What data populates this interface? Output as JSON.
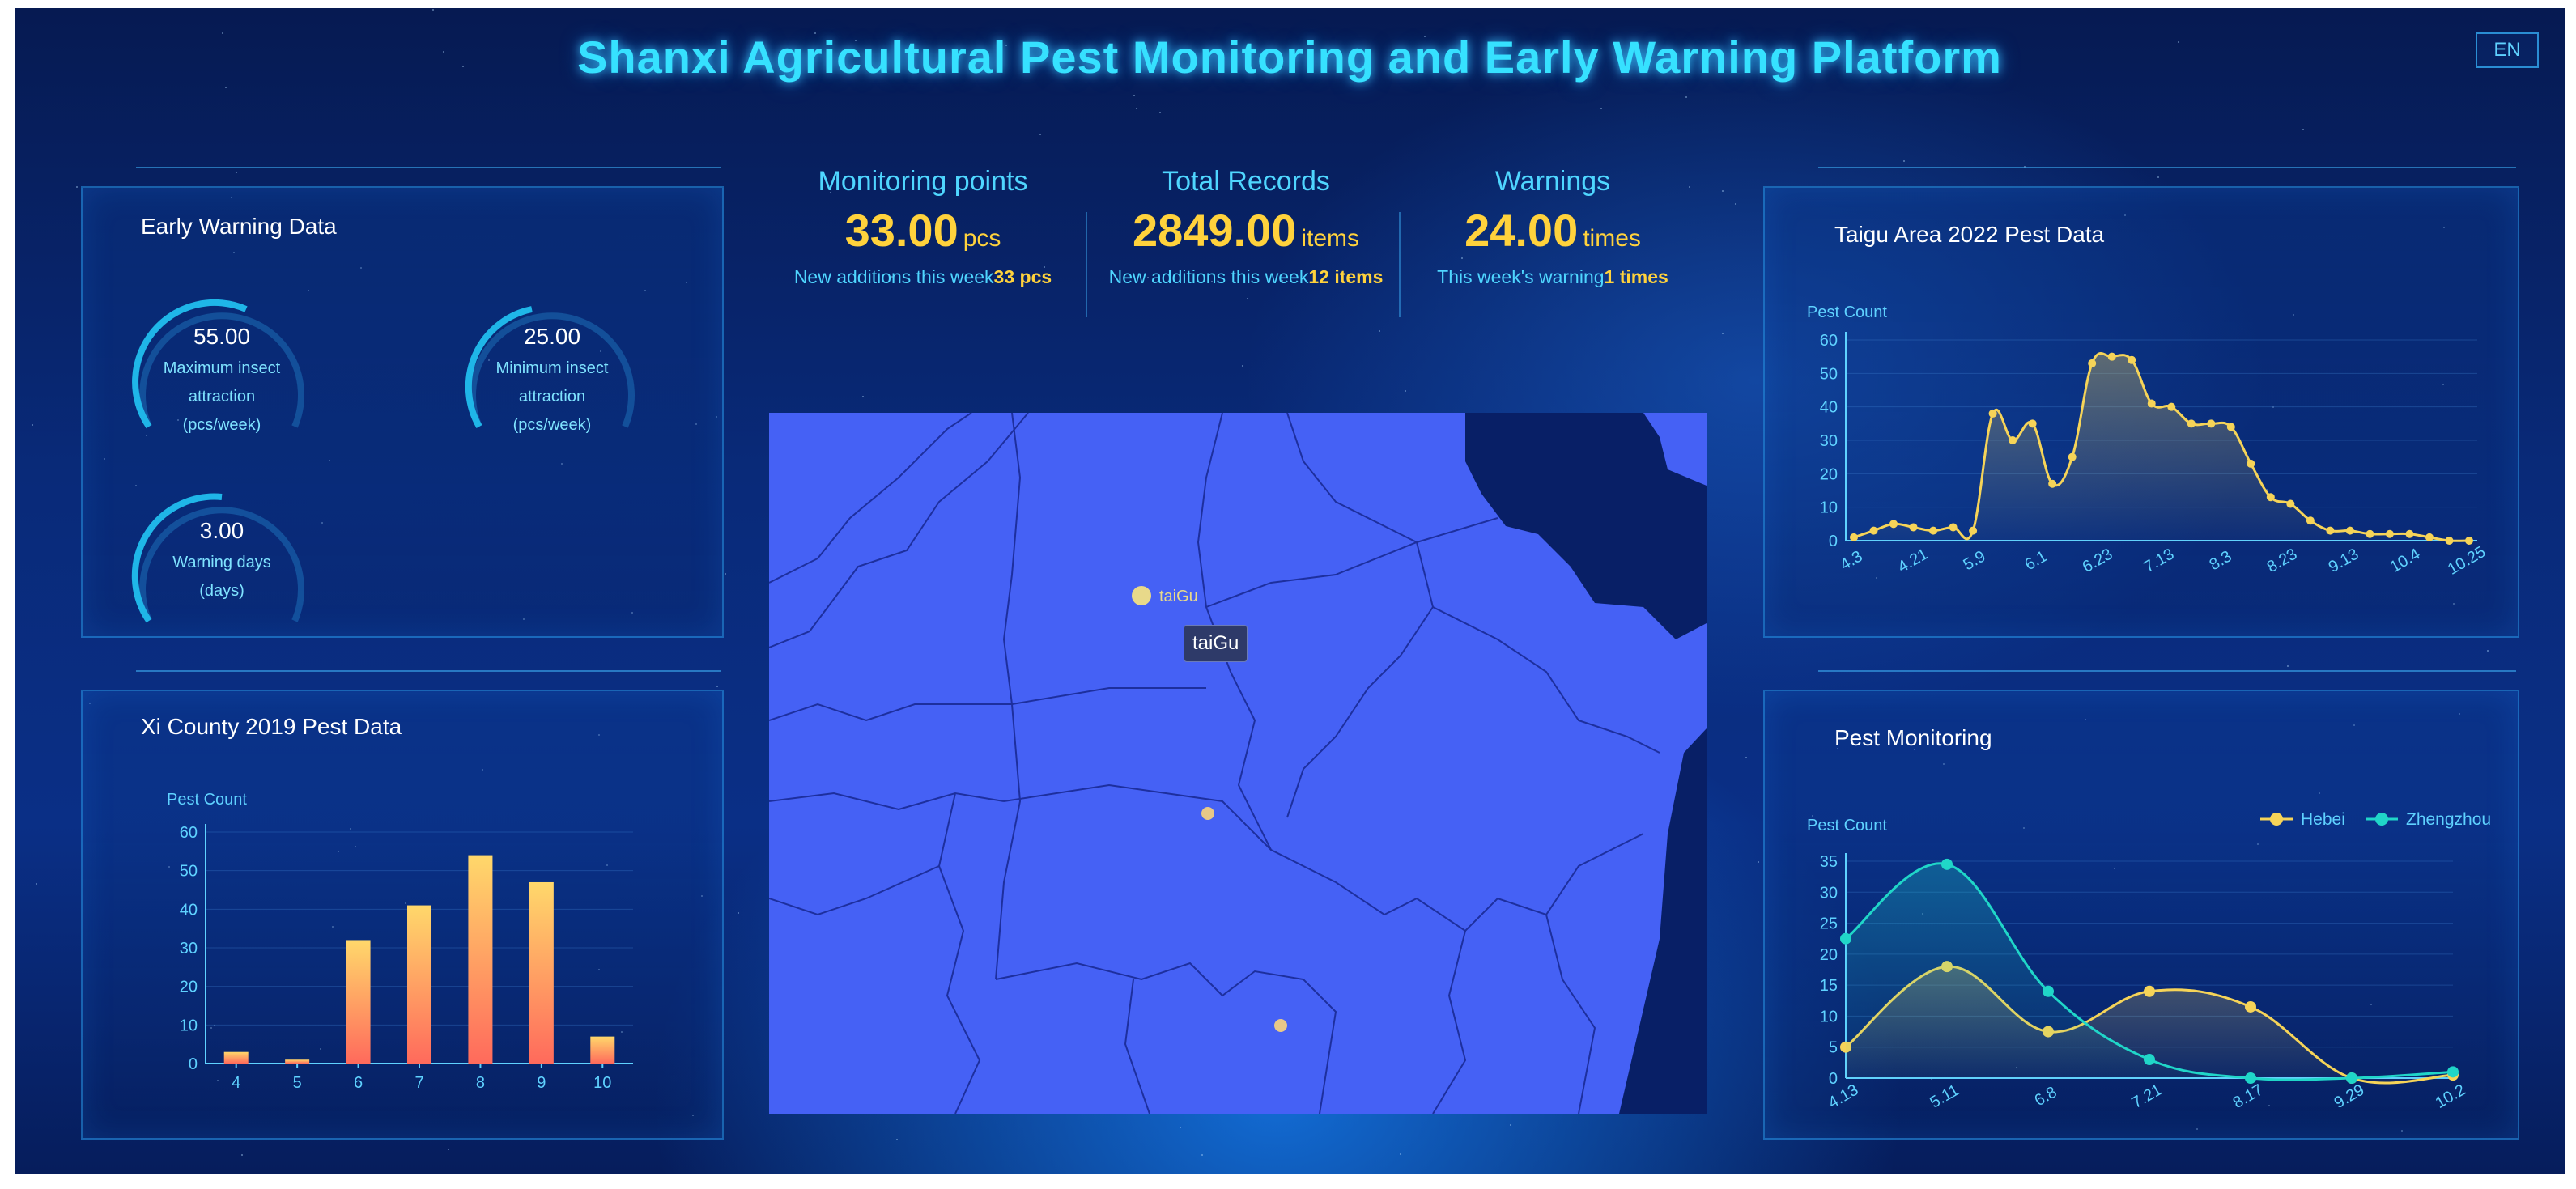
{
  "header": {
    "title": "Shanxi Agricultural Pest Monitoring and Early Warning Platform",
    "lang_button": "EN"
  },
  "early_warning": {
    "title": "Early Warning Data",
    "gauges": [
      {
        "value": "55.00",
        "label_lines": [
          "Maximum insect",
          "attraction",
          "(pcs/week)"
        ]
      },
      {
        "value": "25.00",
        "label_lines": [
          "Minimum insect",
          "attraction",
          "(pcs/week)"
        ]
      },
      {
        "value": "3.00",
        "label_lines": [
          "Warning days",
          "(days)"
        ]
      }
    ]
  },
  "stats": [
    {
      "heading": "Monitoring points",
      "value": "33.00",
      "unit": "pcs",
      "sub_text": "New additions this week",
      "sub_value": "33",
      "sub_unit": "pcs"
    },
    {
      "heading": "Total Records",
      "value": "2849.00",
      "unit": "items",
      "sub_text": "New additions this week",
      "sub_value": "12",
      "sub_unit": "items"
    },
    {
      "heading": "Warnings",
      "value": "24.00",
      "unit": "times",
      "sub_text": "This week's warning",
      "sub_value": "1",
      "sub_unit": "times"
    }
  ],
  "map": {
    "marker_label": "taiGu",
    "tooltip": "taiGu",
    "colors": {
      "land": "#4561f5",
      "sea": "#081f66",
      "marker": "#e8d98a",
      "border": "#1d2f9e"
    }
  },
  "taigu_panel": {
    "title": "Taigu Area 2022 Pest Data"
  },
  "xi_panel": {
    "title": "Xi County 2019 Pest Data"
  },
  "pest_panel": {
    "title": "Pest Monitoring"
  },
  "chart_data": [
    {
      "id": "xi_county",
      "type": "bar",
      "ylabel": "Pest Count",
      "categories": [
        "4",
        "5",
        "6",
        "7",
        "8",
        "9",
        "10"
      ],
      "values": [
        3,
        1,
        32,
        41,
        54,
        47,
        7
      ],
      "ylim": [
        0,
        60
      ],
      "yticks": [
        0,
        10,
        20,
        30,
        40,
        50,
        60
      ],
      "colors": {
        "bar_top": "#ffd86b",
        "bar_bottom": "#ff6a5c",
        "axis": "#5fd2ff"
      }
    },
    {
      "id": "taigu",
      "type": "line",
      "ylabel": "Pest Count",
      "x_tick_labels": [
        "4.3",
        "4.21",
        "5.9",
        "6.1",
        "6.23",
        "7.13",
        "8.3",
        "8.23",
        "9.13",
        "10.4",
        "10.25"
      ],
      "values": [
        1,
        3,
        5,
        4,
        3,
        4,
        3,
        38,
        30,
        35,
        17,
        25,
        53,
        55,
        54,
        41,
        40,
        35,
        35,
        34,
        23,
        13,
        11,
        6,
        3,
        3,
        2,
        2,
        2,
        1,
        0,
        0
      ],
      "ylim": [
        0,
        60
      ],
      "yticks": [
        0,
        10,
        20,
        30,
        40,
        50,
        60
      ],
      "colors": {
        "line": "#f6d458",
        "axis": "#5fd2ff"
      }
    },
    {
      "id": "pest_monitoring",
      "type": "line",
      "ylabel": "Pest Count",
      "x": [
        "4.13",
        "5.11",
        "6.8",
        "7.21",
        "8.17",
        "9.29",
        "10.2"
      ],
      "series": [
        {
          "name": "Hebei",
          "values": [
            5,
            18,
            7.5,
            14,
            11.5,
            0,
            0.5
          ],
          "color": "#f6d458"
        },
        {
          "name": "Zhengzhou",
          "values": [
            22.5,
            34.5,
            14,
            3,
            0,
            0,
            1
          ],
          "color": "#20d6c8"
        }
      ],
      "ylim": [
        0,
        35
      ],
      "yticks": [
        0,
        5,
        10,
        15,
        20,
        25,
        30,
        35
      ],
      "legend": "top-right"
    }
  ]
}
